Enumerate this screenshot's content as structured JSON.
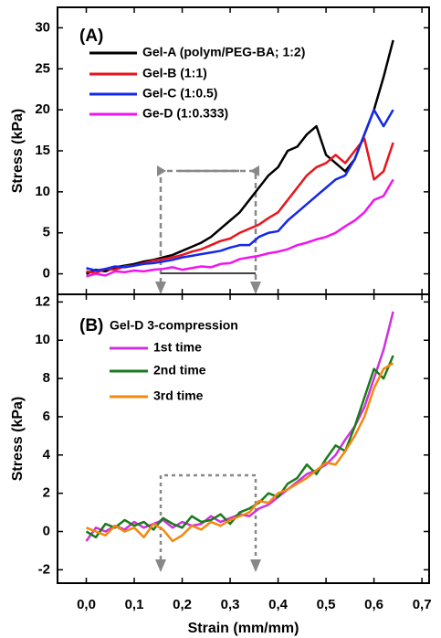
{
  "chart_data": [
    {
      "type": "line",
      "panel_label": "(A)",
      "ylabel": "Stress (kPa)",
      "x": [
        0,
        0.02,
        0.04,
        0.06,
        0.08,
        0.1,
        0.12,
        0.14,
        0.16,
        0.18,
        0.2,
        0.22,
        0.24,
        0.26,
        0.28,
        0.3,
        0.32,
        0.34,
        0.36,
        0.38,
        0.4,
        0.42,
        0.44,
        0.46,
        0.48,
        0.5,
        0.52,
        0.54,
        0.56,
        0.58,
        0.6,
        0.62,
        0.64
      ],
      "series": [
        {
          "name": "Gel-A (polym/PEG-BA; 1:2)",
          "color": "#000000",
          "values": [
            0,
            0.5,
            0.3,
            0.8,
            1.0,
            1.2,
            1.5,
            1.7,
            2.0,
            2.3,
            2.8,
            3.3,
            3.8,
            4.5,
            5.5,
            6.5,
            7.5,
            9,
            10.5,
            12,
            13,
            15,
            15.5,
            17,
            18,
            14.5,
            13.5,
            12.5,
            14,
            17,
            20,
            24,
            28.5
          ]
        },
        {
          "name": "Gel-B (1:1)",
          "color": "#e8141c",
          "values": [
            0.3,
            0.1,
            0.6,
            0.5,
            0.9,
            1.0,
            1.3,
            1.6,
            1.8,
            2.0,
            2.3,
            2.7,
            3.0,
            3.5,
            4.0,
            4.3,
            5.0,
            5.5,
            6.0,
            6.8,
            7.5,
            9,
            10.5,
            12,
            13,
            13.5,
            14.5,
            13.5,
            15,
            16.5,
            11.5,
            12.5,
            16
          ]
        },
        {
          "name": "Gel-C (1:0.5)",
          "color": "#1428e8",
          "values": [
            0.7,
            0.4,
            0.6,
            0.9,
            0.8,
            1.0,
            1.2,
            1.3,
            1.5,
            1.7,
            2.0,
            2.2,
            2.4,
            2.6,
            2.8,
            3.2,
            3.5,
            3.5,
            4.5,
            5.0,
            5.2,
            6.5,
            7.5,
            8.5,
            9.5,
            10.5,
            11.5,
            12,
            14,
            17,
            20,
            18,
            20
          ]
        },
        {
          "name": "Ge-D (1:0.333)",
          "color": "#f014f0",
          "values": [
            -0.3,
            0.0,
            -0.2,
            0.3,
            0.2,
            0.4,
            0.3,
            0.5,
            0.6,
            0.8,
            0.5,
            0.7,
            0.9,
            0.8,
            1.2,
            1.3,
            1.8,
            2.0,
            2.2,
            2.5,
            2.7,
            3.0,
            3.5,
            3.8,
            4.2,
            4.5,
            5,
            5.8,
            6.5,
            7.5,
            9,
            9.5,
            11.5
          ]
        }
      ],
      "xlim": [
        -0.06,
        0.715
      ],
      "xticks": [
        0,
        0.1,
        0.2,
        0.3,
        0.4,
        0.5,
        0.6,
        0.7
      ],
      "ylim": [
        -2.5,
        32.5
      ],
      "yticks": [
        0,
        5,
        10,
        15,
        20,
        25,
        30
      ]
    },
    {
      "type": "line",
      "panel_label": "(B)",
      "legend_title": "Gel-D 3-compression",
      "ylabel": "Stress (kPa)",
      "xlabel": "Strain (mm/mm)",
      "x": [
        0,
        0.02,
        0.04,
        0.06,
        0.08,
        0.1,
        0.12,
        0.14,
        0.16,
        0.18,
        0.2,
        0.22,
        0.24,
        0.26,
        0.28,
        0.3,
        0.32,
        0.34,
        0.36,
        0.38,
        0.4,
        0.42,
        0.44,
        0.46,
        0.48,
        0.5,
        0.52,
        0.54,
        0.56,
        0.58,
        0.6,
        0.62,
        0.64
      ],
      "series": [
        {
          "name": "1st time",
          "color": "#cc33dd",
          "values": [
            -0.5,
            0.2,
            0,
            0.3,
            0.1,
            0.5,
            0.2,
            0.4,
            0.6,
            0.2,
            0.5,
            0.3,
            0.4,
            0.8,
            0.5,
            0.7,
            0.9,
            0.8,
            1.2,
            1.4,
            1.8,
            2.2,
            2.6,
            3.0,
            3.2,
            3.5,
            4.0,
            4.8,
            5.5,
            6.5,
            8,
            9.5,
            11.5
          ]
        },
        {
          "name": "2nd time",
          "color": "#1a7a1a",
          "values": [
            0,
            -0.3,
            0.4,
            0.2,
            0.6,
            0.3,
            0.5,
            0.1,
            0.7,
            0.4,
            0.2,
            0.8,
            0.5,
            0.6,
            0.9,
            0.4,
            1.0,
            1.2,
            1.5,
            2.0,
            1.8,
            2.5,
            2.8,
            3.5,
            3.0,
            3.8,
            4.5,
            4.2,
            5.5,
            7,
            8.5,
            8.0,
            9.2
          ]
        },
        {
          "name": "3rd time",
          "color": "#f5870f",
          "values": [
            0.2,
            0,
            -0.2,
            0.3,
            0,
            0.2,
            -0.3,
            0.4,
            0.1,
            -0.5,
            -0.2,
            0.3,
            0.1,
            0.5,
            0.3,
            0.6,
            0.8,
            1.0,
            1.6,
            1.5,
            2.0,
            2.2,
            2.5,
            2.8,
            3.2,
            3.6,
            3.5,
            4.2,
            5.0,
            6.0,
            7.5,
            8.5,
            8.8
          ]
        }
      ],
      "xlim": [
        -0.06,
        0.715
      ],
      "xticks": [
        {
          "value": 0,
          "label": "0,0"
        },
        {
          "value": 0.1,
          "label": "0,1"
        },
        {
          "value": 0.2,
          "label": "0,2"
        },
        {
          "value": 0.3,
          "label": "0,3"
        },
        {
          "value": 0.4,
          "label": "0,4"
        },
        {
          "value": 0.5,
          "label": "0,5"
        },
        {
          "value": 0.6,
          "label": "0,6"
        },
        {
          "value": 0.7,
          "label": "0,7"
        }
      ],
      "ylim": [
        -2.7,
        12.4
      ],
      "yticks": [
        -2,
        0,
        2,
        4,
        6,
        8,
        10,
        12
      ]
    }
  ]
}
